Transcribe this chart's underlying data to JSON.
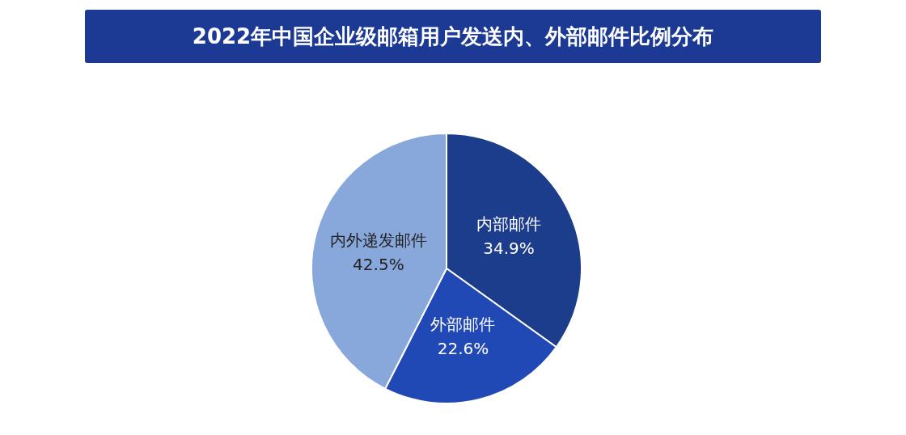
{
  "chart_data": {
    "type": "pie",
    "title": "2022年中国企业级邮箱用户发送内、外部邮件比例分布",
    "categories": [
      "内部邮件",
      "外部邮件",
      "内外递发邮件"
    ],
    "values": [
      34.9,
      22.6,
      42.5
    ],
    "value_labels": [
      "34.9%",
      "22.6%",
      "42.5%"
    ],
    "colors": [
      "#1c3c8c",
      "#2149b5",
      "#88a8dc"
    ]
  }
}
